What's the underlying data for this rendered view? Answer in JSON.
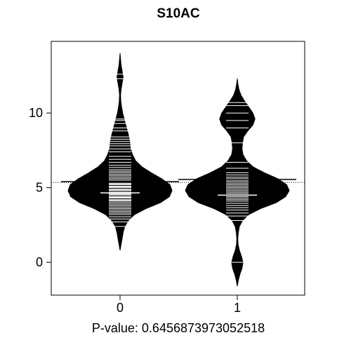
{
  "chart_data": {
    "type": "beanplot",
    "title": "S10AC",
    "xlabel": "P-value: 0.6456873973052518",
    "ylabel": "",
    "categories": [
      "0",
      "1"
    ],
    "ylim": [
      -2.2,
      14.8
    ],
    "yticks": [
      0,
      5,
      10
    ],
    "overall_mean": 5.35,
    "series": [
      {
        "category": "0",
        "mean": 4.65,
        "group_mean_line": 5.4,
        "density": [
          [
            0.8,
            0.0
          ],
          [
            1.2,
            0.02
          ],
          [
            1.6,
            0.04
          ],
          [
            2.0,
            0.06
          ],
          [
            2.4,
            0.09
          ],
          [
            2.8,
            0.16
          ],
          [
            3.2,
            0.28
          ],
          [
            3.6,
            0.5
          ],
          [
            4.0,
            0.78
          ],
          [
            4.4,
            0.95
          ],
          [
            4.8,
            1.0
          ],
          [
            5.2,
            0.96
          ],
          [
            5.6,
            0.8
          ],
          [
            6.0,
            0.6
          ],
          [
            6.4,
            0.42
          ],
          [
            6.8,
            0.3
          ],
          [
            7.2,
            0.24
          ],
          [
            7.6,
            0.2
          ],
          [
            8.0,
            0.19
          ],
          [
            8.4,
            0.17
          ],
          [
            8.8,
            0.14
          ],
          [
            9.2,
            0.11
          ],
          [
            9.6,
            0.08
          ],
          [
            10.0,
            0.05
          ],
          [
            10.4,
            0.03
          ],
          [
            10.8,
            0.015
          ],
          [
            11.2,
            0.01
          ],
          [
            11.6,
            0.02
          ],
          [
            12.0,
            0.04
          ],
          [
            12.4,
            0.06
          ],
          [
            12.8,
            0.04
          ],
          [
            13.2,
            0.02
          ],
          [
            13.6,
            0.01
          ],
          [
            14.0,
            0.0
          ]
        ],
        "observations": [
          2.4,
          2.7,
          2.9,
          3.05,
          3.2,
          3.3,
          3.4,
          3.5,
          3.6,
          3.7,
          3.8,
          3.9,
          4.0,
          4.1,
          4.15,
          4.2,
          4.3,
          4.35,
          4.4,
          4.5,
          4.55,
          4.6,
          4.65,
          4.7,
          4.8,
          4.85,
          4.9,
          5.0,
          5.05,
          5.1,
          5.2,
          5.25,
          5.3,
          5.4,
          5.5,
          5.6,
          5.7,
          5.8,
          5.9,
          6.0,
          6.1,
          6.2,
          6.35,
          6.5,
          6.7,
          6.9,
          7.1,
          7.4,
          7.6,
          7.8,
          7.95,
          8.1,
          8.25,
          8.4,
          8.8,
          9.0,
          9.3,
          9.5,
          9.6,
          12.3,
          12.6
        ]
      },
      {
        "category": "1",
        "mean": 4.5,
        "group_mean_line": 5.55,
        "density": [
          [
            -1.6,
            0.0
          ],
          [
            -1.2,
            0.02
          ],
          [
            -0.8,
            0.05
          ],
          [
            -0.4,
            0.09
          ],
          [
            0.0,
            0.11
          ],
          [
            0.4,
            0.08
          ],
          [
            0.8,
            0.04
          ],
          [
            1.2,
            0.015
          ],
          [
            1.6,
            0.01
          ],
          [
            2.0,
            0.02
          ],
          [
            2.4,
            0.04
          ],
          [
            2.8,
            0.1
          ],
          [
            3.2,
            0.22
          ],
          [
            3.6,
            0.45
          ],
          [
            4.0,
            0.75
          ],
          [
            4.4,
            0.93
          ],
          [
            4.8,
            1.0
          ],
          [
            5.2,
            0.95
          ],
          [
            5.6,
            0.78
          ],
          [
            6.0,
            0.52
          ],
          [
            6.4,
            0.3
          ],
          [
            6.8,
            0.18
          ],
          [
            7.2,
            0.11
          ],
          [
            7.6,
            0.09
          ],
          [
            8.0,
            0.1
          ],
          [
            8.4,
            0.12
          ],
          [
            8.8,
            0.2
          ],
          [
            9.2,
            0.3
          ],
          [
            9.6,
            0.34
          ],
          [
            10.0,
            0.3
          ],
          [
            10.4,
            0.22
          ],
          [
            10.8,
            0.14
          ],
          [
            11.2,
            0.07
          ],
          [
            11.6,
            0.03
          ],
          [
            12.0,
            0.01
          ],
          [
            12.3,
            0.0
          ]
        ],
        "observations": [
          0.0,
          2.8,
          3.1,
          3.3,
          3.5,
          3.65,
          3.8,
          3.95,
          4.1,
          4.2,
          4.3,
          4.4,
          4.5,
          4.6,
          4.7,
          4.8,
          4.9,
          5.0,
          5.1,
          5.2,
          5.3,
          5.4,
          5.5,
          5.6,
          5.7,
          5.85,
          6.0,
          6.3,
          6.7,
          8.0,
          9.0,
          9.5,
          10.0,
          10.5,
          10.7
        ]
      }
    ],
    "grid": false
  }
}
